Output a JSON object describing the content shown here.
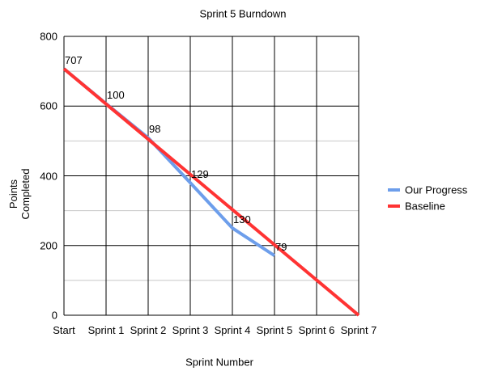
{
  "chart_data": {
    "type": "line",
    "title": "Sprint 5 Burndown",
    "x_label": "Sprint Number",
    "y_label": "Points Completed",
    "categories": [
      "Start",
      "Sprint 1",
      "Sprint 2",
      "Sprint 3",
      "Sprint 4",
      "Sprint 5",
      "Sprint 6",
      "Sprint 7"
    ],
    "series": [
      {
        "name": "Our Progress",
        "color": "#6d9eeb",
        "values": [
          707,
          607,
          509,
          380,
          250,
          171,
          null,
          null
        ],
        "point_labels": [
          707,
          100,
          98,
          129,
          130,
          79,
          null,
          null
        ]
      },
      {
        "name": "Baseline",
        "color": "#ff3333",
        "values": [
          707,
          606,
          505,
          404,
          303,
          202,
          101,
          0
        ]
      }
    ],
    "ylim": [
      0,
      800
    ],
    "yticks": [
      0,
      200,
      400,
      600,
      800
    ],
    "minor_yticks": [
      100,
      300,
      500,
      700
    ],
    "grid": true,
    "legend": "right"
  }
}
